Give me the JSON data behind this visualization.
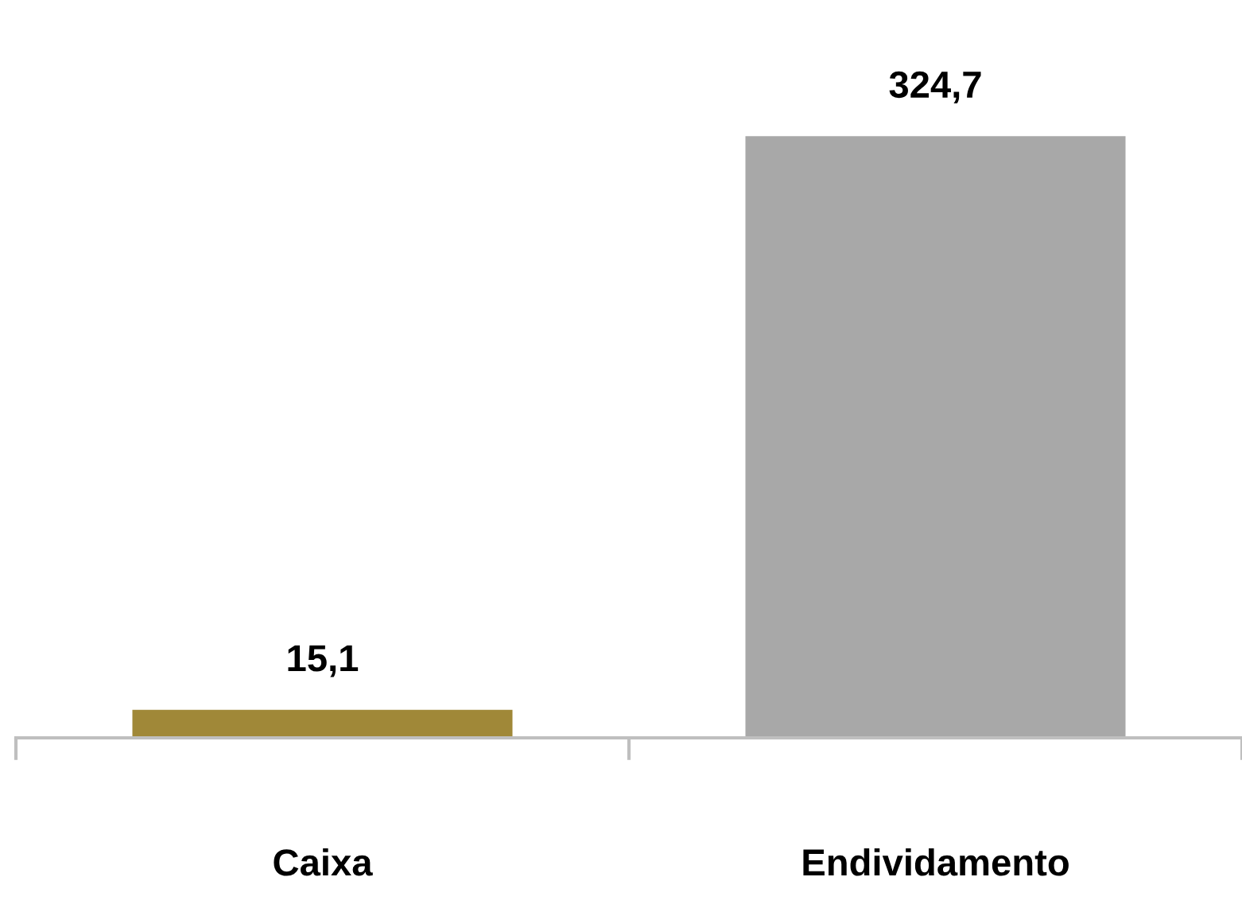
{
  "chart_data": {
    "type": "bar",
    "categories": [
      "Caixa",
      "Endividamento"
    ],
    "values": [
      15.1,
      324.7
    ],
    "colors": [
      "#a08838",
      "#a8a8a8"
    ],
    "value_labels": [
      "15,1",
      "324,7"
    ],
    "grid": false,
    "legend": false
  }
}
